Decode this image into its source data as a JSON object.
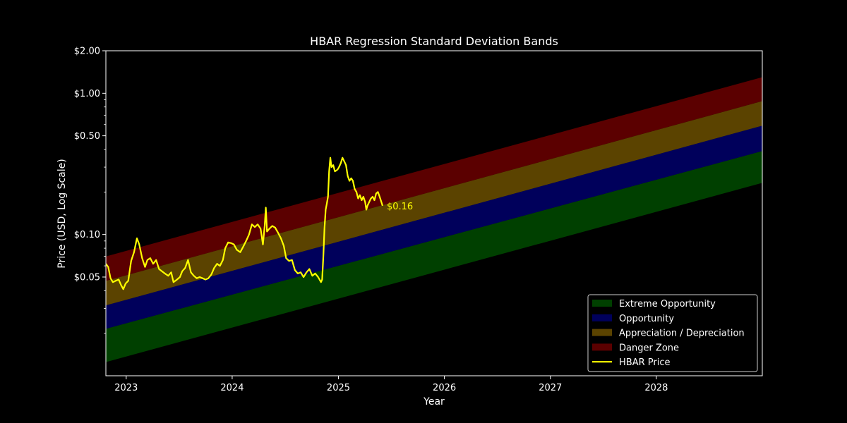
{
  "chart_data": {
    "type": "line",
    "title": "HBAR Regression Standard Deviation Bands",
    "xlabel": "Year",
    "ylabel": "Price (USD, Log Scale)",
    "xlim": [
      "2022-10-23",
      "2028-12-31"
    ],
    "ylim": [
      0.01,
      2.0
    ],
    "yscale": "log",
    "x_ticks": [
      {
        "date": "2023-01-01",
        "label": "2023"
      },
      {
        "date": "2024-01-01",
        "label": "2024"
      },
      {
        "date": "2025-01-01",
        "label": "2025"
      },
      {
        "date": "2026-01-01",
        "label": "2026"
      },
      {
        "date": "2027-01-01",
        "label": "2027"
      },
      {
        "date": "2028-01-01",
        "label": "2028"
      }
    ],
    "y_ticks": [
      {
        "value": 0.05,
        "label": "$0.05"
      },
      {
        "value": 0.1,
        "label": "$0.10"
      },
      {
        "value": 0.5,
        "label": "$0.50"
      },
      {
        "value": 1.0,
        "label": "$1.00"
      },
      {
        "value": 2.0,
        "label": "$2.00"
      }
    ],
    "grid": false,
    "legend_position": "bottom-right",
    "bands": [
      {
        "name": "Extreme Opportunity",
        "color": "#005500",
        "lower": [
          {
            "x": "2022-10-23",
            "y": 0.0125
          },
          {
            "x": "2028-12-31",
            "y": 0.232
          }
        ],
        "upper": [
          {
            "x": "2022-10-23",
            "y": 0.0215
          },
          {
            "x": "2028-12-31",
            "y": 0.39
          }
        ]
      },
      {
        "name": "Opportunity",
        "color": "#00007a",
        "lower": [
          {
            "x": "2022-10-23",
            "y": 0.0215
          },
          {
            "x": "2028-12-31",
            "y": 0.39
          }
        ],
        "upper": [
          {
            "x": "2022-10-23",
            "y": 0.0315
          },
          {
            "x": "2028-12-31",
            "y": 0.59
          }
        ]
      },
      {
        "name": "Appreciation / Depreciation",
        "color": "#7a5a00",
        "lower": [
          {
            "x": "2022-10-23",
            "y": 0.0315
          },
          {
            "x": "2028-12-31",
            "y": 0.59
          }
        ],
        "upper": [
          {
            "x": "2022-10-23",
            "y": 0.047
          },
          {
            "x": "2028-12-31",
            "y": 0.88
          }
        ]
      },
      {
        "name": "Danger Zone",
        "color": "#7a0000",
        "lower": [
          {
            "x": "2022-10-23",
            "y": 0.047
          },
          {
            "x": "2028-12-31",
            "y": 0.88
          }
        ],
        "upper": [
          {
            "x": "2022-10-23",
            "y": 0.07
          },
          {
            "x": "2028-12-31",
            "y": 1.3
          }
        ]
      }
    ],
    "series": [
      {
        "name": "HBAR Price",
        "color": "#ffff00",
        "points": [
          {
            "x": "2022-10-23",
            "y": 0.062
          },
          {
            "x": "2022-10-31",
            "y": 0.059
          },
          {
            "x": "2022-11-08",
            "y": 0.049
          },
          {
            "x": "2022-11-16",
            "y": 0.046
          },
          {
            "x": "2022-11-26",
            "y": 0.047
          },
          {
            "x": "2022-12-06",
            "y": 0.048
          },
          {
            "x": "2022-12-14",
            "y": 0.044
          },
          {
            "x": "2022-12-22",
            "y": 0.041
          },
          {
            "x": "2022-12-30",
            "y": 0.045
          },
          {
            "x": "2023-01-08",
            "y": 0.047
          },
          {
            "x": "2023-01-18",
            "y": 0.065
          },
          {
            "x": "2023-01-28",
            "y": 0.075
          },
          {
            "x": "2023-02-07",
            "y": 0.094
          },
          {
            "x": "2023-02-15",
            "y": 0.085
          },
          {
            "x": "2023-02-25",
            "y": 0.068
          },
          {
            "x": "2023-03-07",
            "y": 0.059
          },
          {
            "x": "2023-03-15",
            "y": 0.066
          },
          {
            "x": "2023-03-25",
            "y": 0.068
          },
          {
            "x": "2023-04-04",
            "y": 0.062
          },
          {
            "x": "2023-04-14",
            "y": 0.066
          },
          {
            "x": "2023-04-24",
            "y": 0.057
          },
          {
            "x": "2023-05-04",
            "y": 0.055
          },
          {
            "x": "2023-05-14",
            "y": 0.053
          },
          {
            "x": "2023-05-26",
            "y": 0.051
          },
          {
            "x": "2023-06-05",
            "y": 0.054
          },
          {
            "x": "2023-06-13",
            "y": 0.046
          },
          {
            "x": "2023-06-25",
            "y": 0.048
          },
          {
            "x": "2023-07-05",
            "y": 0.05
          },
          {
            "x": "2023-07-13",
            "y": 0.055
          },
          {
            "x": "2023-07-23",
            "y": 0.058
          },
          {
            "x": "2023-08-02",
            "y": 0.066
          },
          {
            "x": "2023-08-12",
            "y": 0.054
          },
          {
            "x": "2023-08-22",
            "y": 0.051
          },
          {
            "x": "2023-09-01",
            "y": 0.049
          },
          {
            "x": "2023-09-11",
            "y": 0.05
          },
          {
            "x": "2023-09-21",
            "y": 0.049
          },
          {
            "x": "2023-10-01",
            "y": 0.048
          },
          {
            "x": "2023-10-11",
            "y": 0.049
          },
          {
            "x": "2023-10-21",
            "y": 0.052
          },
          {
            "x": "2023-10-31",
            "y": 0.058
          },
          {
            "x": "2023-11-10",
            "y": 0.062
          },
          {
            "x": "2023-11-20",
            "y": 0.06
          },
          {
            "x": "2023-11-30",
            "y": 0.066
          },
          {
            "x": "2023-12-08",
            "y": 0.08
          },
          {
            "x": "2023-12-18",
            "y": 0.088
          },
          {
            "x": "2023-12-28",
            "y": 0.087
          },
          {
            "x": "2024-01-07",
            "y": 0.085
          },
          {
            "x": "2024-01-17",
            "y": 0.078
          },
          {
            "x": "2024-01-29",
            "y": 0.075
          },
          {
            "x": "2024-02-08",
            "y": 0.082
          },
          {
            "x": "2024-02-18",
            "y": 0.09
          },
          {
            "x": "2024-02-28",
            "y": 0.1
          },
          {
            "x": "2024-03-09",
            "y": 0.118
          },
          {
            "x": "2024-03-19",
            "y": 0.113
          },
          {
            "x": "2024-03-29",
            "y": 0.118
          },
          {
            "x": "2024-04-08",
            "y": 0.11
          },
          {
            "x": "2024-04-16",
            "y": 0.085
          },
          {
            "x": "2024-04-22",
            "y": 0.115
          },
          {
            "x": "2024-04-26",
            "y": 0.155
          },
          {
            "x": "2024-04-30",
            "y": 0.105
          },
          {
            "x": "2024-05-08",
            "y": 0.11
          },
          {
            "x": "2024-05-18",
            "y": 0.115
          },
          {
            "x": "2024-05-28",
            "y": 0.112
          },
          {
            "x": "2024-06-07",
            "y": 0.103
          },
          {
            "x": "2024-06-17",
            "y": 0.094
          },
          {
            "x": "2024-06-27",
            "y": 0.083
          },
          {
            "x": "2024-07-05",
            "y": 0.068
          },
          {
            "x": "2024-07-15",
            "y": 0.065
          },
          {
            "x": "2024-07-25",
            "y": 0.066
          },
          {
            "x": "2024-08-04",
            "y": 0.056
          },
          {
            "x": "2024-08-14",
            "y": 0.053
          },
          {
            "x": "2024-08-24",
            "y": 0.054
          },
          {
            "x": "2024-09-03",
            "y": 0.05
          },
          {
            "x": "2024-09-13",
            "y": 0.054
          },
          {
            "x": "2024-09-23",
            "y": 0.057
          },
          {
            "x": "2024-10-03",
            "y": 0.051
          },
          {
            "x": "2024-10-13",
            "y": 0.053
          },
          {
            "x": "2024-10-23",
            "y": 0.05
          },
          {
            "x": "2024-11-02",
            "y": 0.046
          },
          {
            "x": "2024-11-06",
            "y": 0.048
          },
          {
            "x": "2024-11-10",
            "y": 0.07
          },
          {
            "x": "2024-11-14",
            "y": 0.11
          },
          {
            "x": "2024-11-18",
            "y": 0.15
          },
          {
            "x": "2024-11-22",
            "y": 0.165
          },
          {
            "x": "2024-11-26",
            "y": 0.185
          },
          {
            "x": "2024-11-30",
            "y": 0.28
          },
          {
            "x": "2024-12-04",
            "y": 0.35
          },
          {
            "x": "2024-12-08",
            "y": 0.3
          },
          {
            "x": "2024-12-14",
            "y": 0.31
          },
          {
            "x": "2024-12-20",
            "y": 0.28
          },
          {
            "x": "2024-12-26",
            "y": 0.285
          },
          {
            "x": "2024-12-30",
            "y": 0.29
          },
          {
            "x": "2025-01-03",
            "y": 0.3
          },
          {
            "x": "2025-01-09",
            "y": 0.32
          },
          {
            "x": "2025-01-15",
            "y": 0.35
          },
          {
            "x": "2025-01-21",
            "y": 0.33
          },
          {
            "x": "2025-01-27",
            "y": 0.31
          },
          {
            "x": "2025-02-02",
            "y": 0.26
          },
          {
            "x": "2025-02-08",
            "y": 0.24
          },
          {
            "x": "2025-02-14",
            "y": 0.25
          },
          {
            "x": "2025-02-20",
            "y": 0.24
          },
          {
            "x": "2025-02-26",
            "y": 0.21
          },
          {
            "x": "2025-03-04",
            "y": 0.2
          },
          {
            "x": "2025-03-10",
            "y": 0.18
          },
          {
            "x": "2025-03-16",
            "y": 0.19
          },
          {
            "x": "2025-03-22",
            "y": 0.175
          },
          {
            "x": "2025-03-28",
            "y": 0.185
          },
          {
            "x": "2025-04-03",
            "y": 0.17
          },
          {
            "x": "2025-04-07",
            "y": 0.15
          },
          {
            "x": "2025-04-11",
            "y": 0.16
          },
          {
            "x": "2025-04-17",
            "y": 0.17
          },
          {
            "x": "2025-04-23",
            "y": 0.18
          },
          {
            "x": "2025-04-29",
            "y": 0.185
          },
          {
            "x": "2025-05-05",
            "y": 0.175
          },
          {
            "x": "2025-05-11",
            "y": 0.195
          },
          {
            "x": "2025-05-17",
            "y": 0.2
          },
          {
            "x": "2025-05-23",
            "y": 0.185
          },
          {
            "x": "2025-05-29",
            "y": 0.17
          },
          {
            "x": "2025-06-02",
            "y": 0.16
          }
        ]
      }
    ],
    "annotations": [
      {
        "text": "$0.16",
        "x": "2025-06-02",
        "y": 0.16,
        "color": "#ffff00"
      }
    ]
  }
}
